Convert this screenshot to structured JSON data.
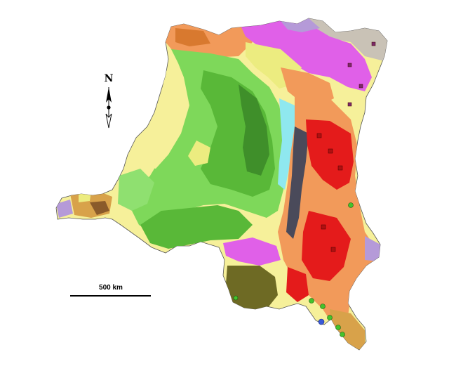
{
  "map": {
    "north_label": "N",
    "scale_label": "500 km",
    "north_arrow_icon": "north-arrow-icon"
  },
  "colors": {
    "yellow_pale": "#f6f09a",
    "yellow": "#ecec80",
    "green_light": "#7ed85a",
    "green": "#59b838",
    "green_dark": "#3f8f2a",
    "green_bright": "#8fe070",
    "cyan": "#8fe8ef",
    "orange": "#f29a5a",
    "orange_dark": "#d8792f",
    "magenta": "#e060e8",
    "lavender": "#b59ad8",
    "grey": "#c9c2b6",
    "red": "#e41b1b",
    "dark_slate": "#4a4a5a",
    "olive": "#6e6a24",
    "tan": "#d8a24a",
    "brown": "#8a5a2a"
  }
}
